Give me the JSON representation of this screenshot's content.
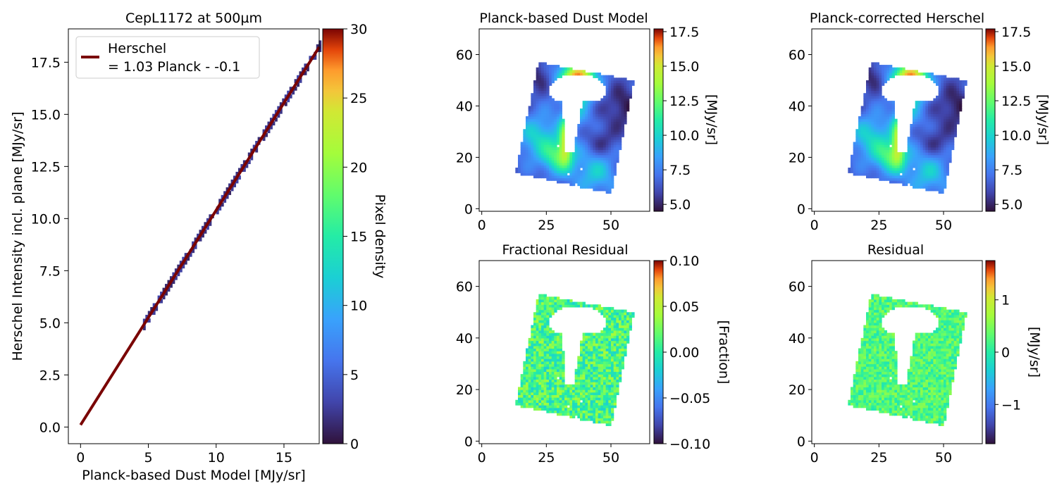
{
  "chart_data": [
    {
      "id": "scatter",
      "type": "heatmap",
      "title": "CepL1172 at 500µm",
      "xlabel": "Planck-based Dust Model [MJy/sr]",
      "ylabel": "Herschel Intensity incl. plane [MJy/sr]",
      "xlim": [
        -0.9,
        17.6
      ],
      "ylim": [
        -0.8,
        19.1
      ],
      "x_ticks": [
        0,
        5,
        10,
        15
      ],
      "y_ticks": [
        0.0,
        2.5,
        5.0,
        7.5,
        10.0,
        12.5,
        15.0,
        17.5
      ],
      "fit_line": {
        "slope": 1.03,
        "intercept": 0.1,
        "x_range": [
          0,
          17.6
        ]
      },
      "density_band": {
        "x_range": [
          4.6,
          17.6
        ],
        "y_half_width": 0.18,
        "density_range": [
          1,
          3
        ]
      },
      "legend": {
        "label_line1": "Herschel",
        "label_line2": "= 1.03 Planck - -0.1",
        "placement": "upper-left",
        "color": "#7a0403"
      },
      "colorbar": {
        "label": "Pixel density",
        "min": 0,
        "max": 30,
        "ticks": [
          0,
          5,
          10,
          15,
          20,
          25,
          30
        ],
        "cmap": "turbo"
      }
    },
    {
      "id": "dust-model",
      "type": "heatmap",
      "title": "Planck-based Dust Model",
      "xlim": [
        -1,
        65
      ],
      "ylim": [
        -1,
        70
      ],
      "x_ticks": [
        0,
        25,
        50
      ],
      "y_ticks": [
        0,
        20,
        40,
        60
      ],
      "map": "intensity",
      "colorbar": {
        "label": "[MJy/sr]",
        "min": 4.5,
        "max": 17.7,
        "ticks": [
          5.0,
          7.5,
          10.0,
          12.5,
          15.0,
          17.5
        ],
        "tick_labels": [
          "5.0",
          "7.5",
          "10.0",
          "12.5",
          "15.0",
          "17.5"
        ],
        "cmap": "turbo"
      }
    },
    {
      "id": "corrected-herschel",
      "type": "heatmap",
      "title": "Planck-corrected Herschel",
      "xlim": [
        -1,
        65
      ],
      "ylim": [
        -1,
        70
      ],
      "x_ticks": [
        0,
        25,
        50
      ],
      "y_ticks": [
        0,
        20,
        40,
        60
      ],
      "map": "intensity",
      "colorbar": {
        "label": "[MJy/sr]",
        "min": 4.5,
        "max": 17.7,
        "ticks": [
          5.0,
          7.5,
          10.0,
          12.5,
          15.0,
          17.5
        ],
        "tick_labels": [
          "5.0",
          "7.5",
          "10.0",
          "12.5",
          "15.0",
          "17.5"
        ],
        "cmap": "turbo"
      }
    },
    {
      "id": "fractional-residual",
      "type": "heatmap",
      "title": "Fractional Residual",
      "xlim": [
        -1,
        65
      ],
      "ylim": [
        -1,
        70
      ],
      "x_ticks": [
        0,
        25,
        50
      ],
      "y_ticks": [
        0,
        20,
        40,
        60
      ],
      "map": "fraction",
      "colorbar": {
        "label": "[Fraction]",
        "min": -0.1,
        "max": 0.1,
        "ticks": [
          -0.1,
          -0.05,
          0.0,
          0.05,
          0.1
        ],
        "tick_labels": [
          "−0.10",
          "−0.05",
          "0.00",
          "0.05",
          "0.10"
        ],
        "cmap": "turbo"
      }
    },
    {
      "id": "residual",
      "type": "heatmap",
      "title": "Residual",
      "xlim": [
        -1,
        65
      ],
      "ylim": [
        -1,
        70
      ],
      "x_ticks": [
        0,
        25,
        50
      ],
      "y_ticks": [
        0,
        20,
        40,
        60
      ],
      "map": "residual",
      "colorbar": {
        "label": "[MJy/sr]",
        "min": -1.75,
        "max": 1.75,
        "ticks": [
          -1,
          0,
          1
        ],
        "tick_labels": [
          "−1",
          "0",
          "1"
        ],
        "cmap": "turbo"
      }
    }
  ]
}
